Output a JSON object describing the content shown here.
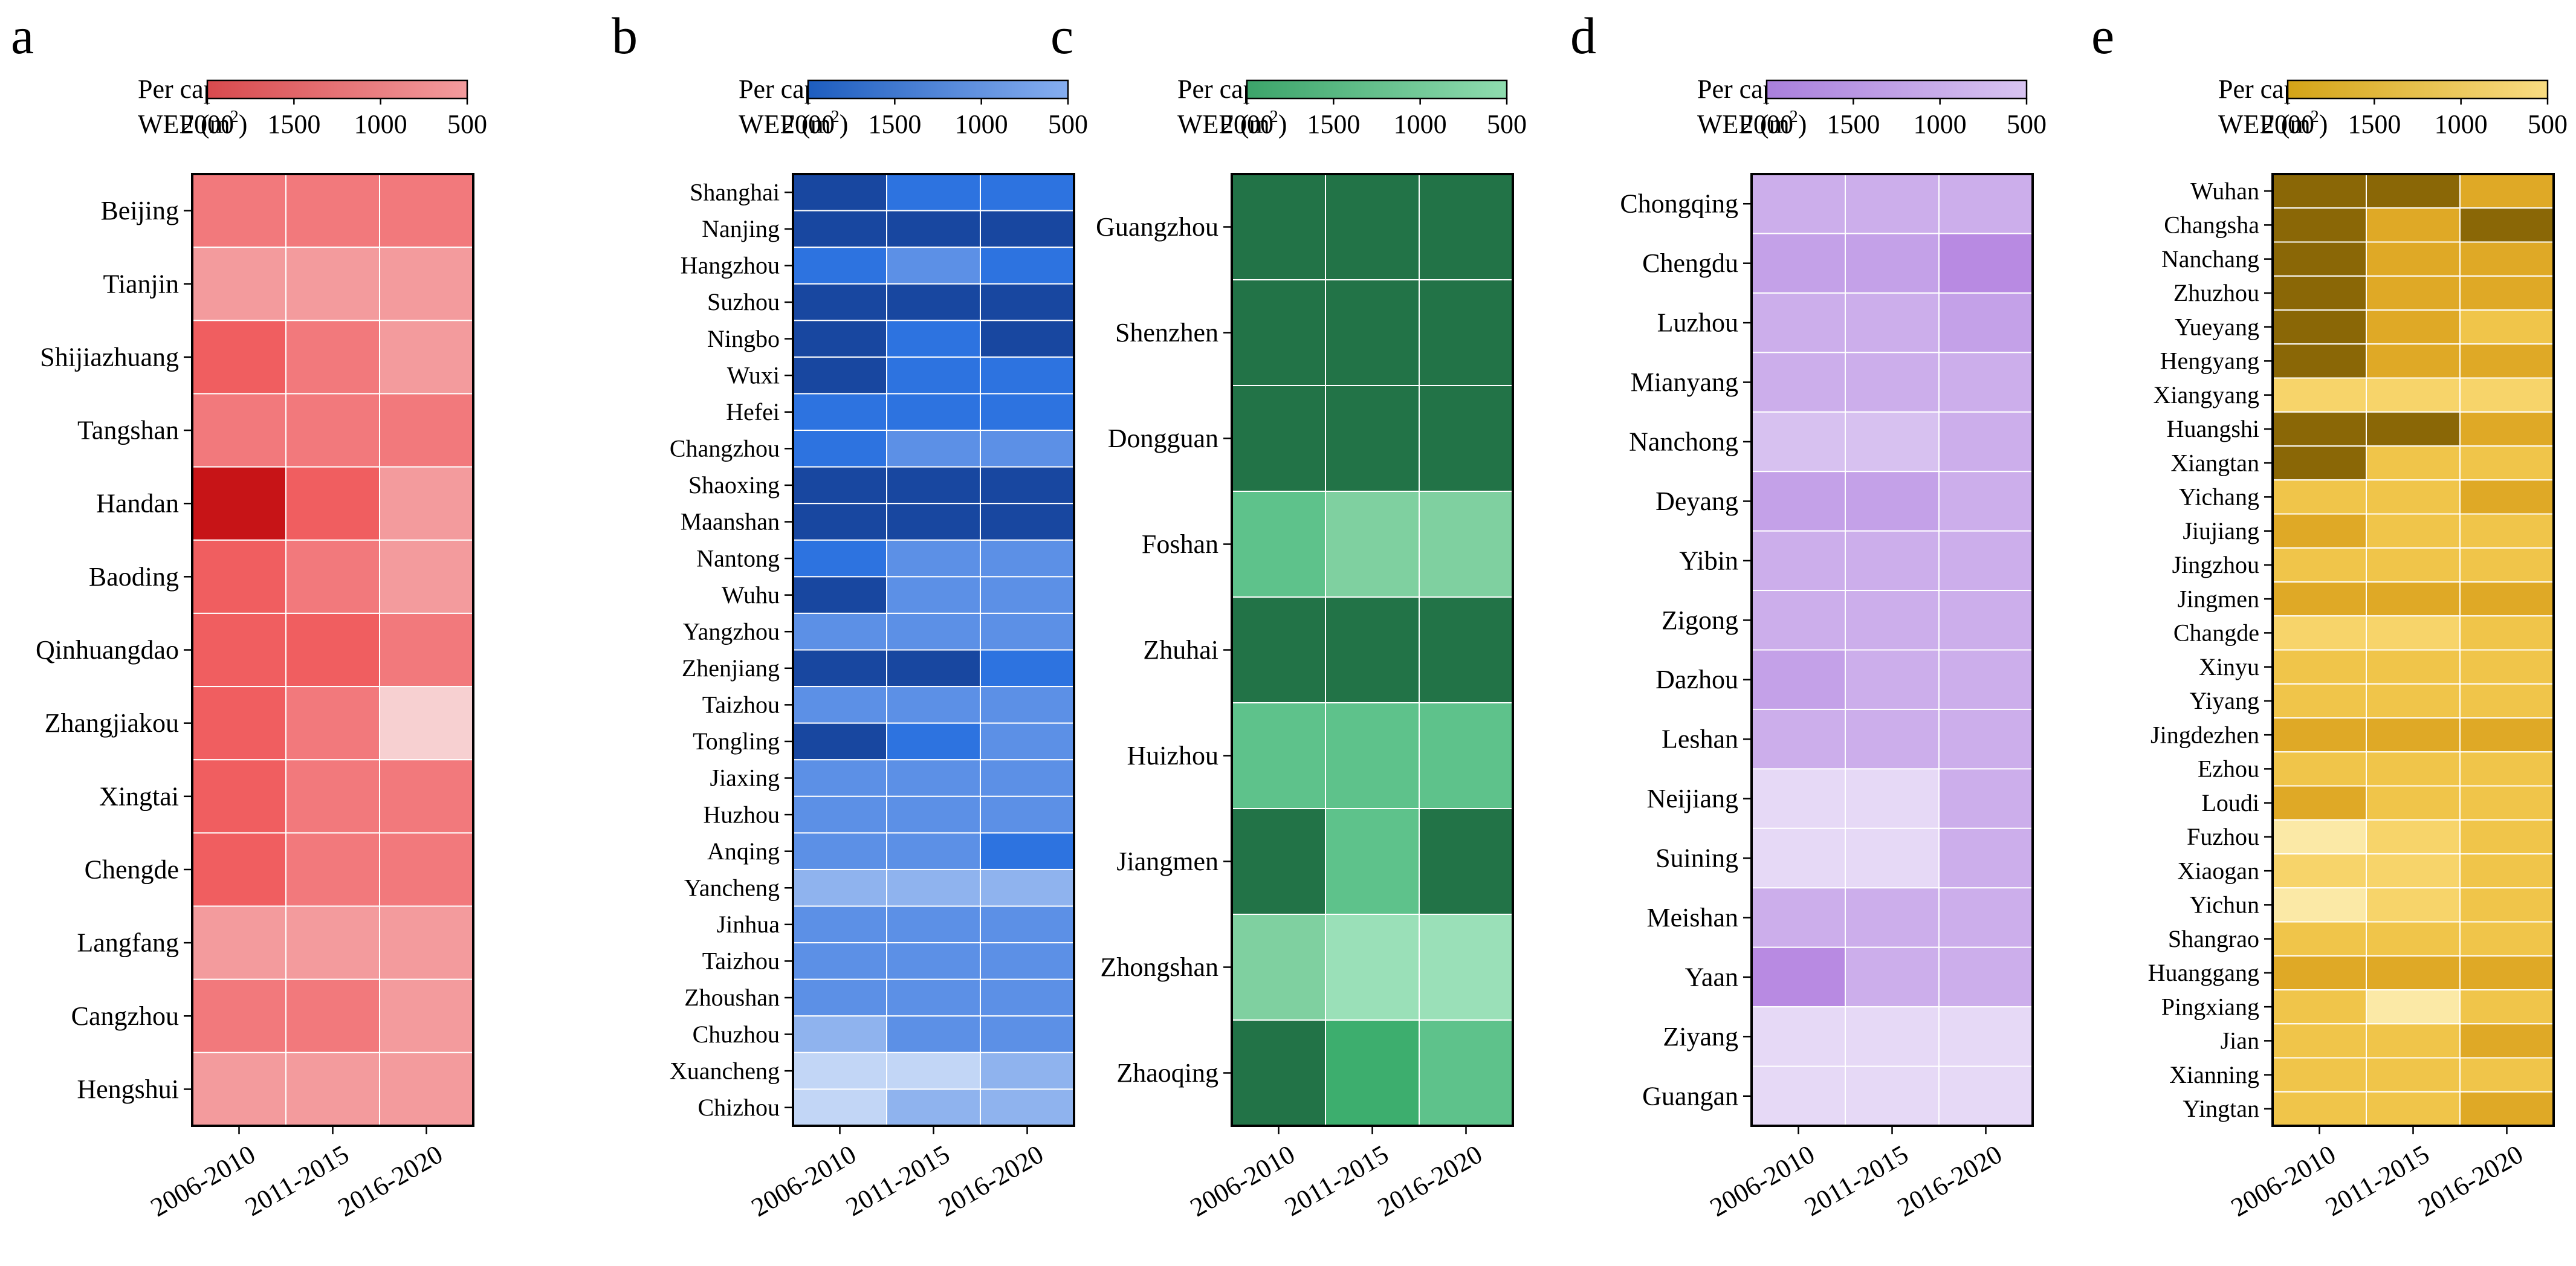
{
  "figure": {
    "legend_title_line1": "Per capita",
    "legend_title_line2": "WEF (m",
    "legend_title_sup": "2",
    "legend_title_close": ")"
  },
  "chart_data": [
    {
      "type": "heatmap",
      "panel_label": "a",
      "colorbar_ticks": [
        "2000",
        "1500",
        "1000",
        "500"
      ],
      "colorbar_range": [
        2000,
        500
      ],
      "colorbar_colors": [
        "#d84a4e",
        "#f39b9d"
      ],
      "palette": [
        "#f7d0d1",
        "#f39b9d",
        "#f2797c",
        "#f05e60",
        "#c71417"
      ],
      "periods": [
        "2006-2010",
        "2011-2015",
        "2016-2020"
      ],
      "cities": [
        "Beijing",
        "Tianjin",
        "Shijiazhuang",
        "Tangshan",
        "Handan",
        "Baoding",
        "Qinhuangdao",
        "Zhangjiakou",
        "Xingtai",
        "Chengde",
        "Langfang",
        "Cangzhou",
        "Hengshui"
      ],
      "levels": [
        [
          2,
          2,
          2
        ],
        [
          1,
          1,
          1
        ],
        [
          3,
          2,
          1
        ],
        [
          2,
          2,
          2
        ],
        [
          4,
          3,
          1
        ],
        [
          3,
          2,
          1
        ],
        [
          3,
          3,
          2
        ],
        [
          3,
          2,
          0
        ],
        [
          3,
          2,
          2
        ],
        [
          3,
          2,
          2
        ],
        [
          1,
          1,
          1
        ],
        [
          2,
          2,
          1
        ],
        [
          1,
          1,
          1
        ]
      ]
    },
    {
      "type": "heatmap",
      "panel_label": "b",
      "colorbar_ticks": [
        "2000",
        "1500",
        "1000",
        "500"
      ],
      "colorbar_range": [
        2000,
        500
      ],
      "colorbar_colors": [
        "#1d5dbf",
        "#86aef0"
      ],
      "palette": [
        "#c2d6f6",
        "#8fb3ee",
        "#5c90e6",
        "#2d73e0",
        "#1847a0"
      ],
      "periods": [
        "2006-2010",
        "2011-2015",
        "2016-2020"
      ],
      "cities": [
        "Shanghai",
        "Nanjing",
        "Hangzhou",
        "Suzhou",
        "Ningbo",
        "Wuxi",
        "Hefei",
        "Changzhou",
        "Shaoxing",
        "Maanshan",
        "Nantong",
        "Wuhu",
        "Yangzhou",
        "Zhenjiang",
        "Taizhou",
        "Tongling",
        "Jiaxing",
        "Huzhou",
        "Anqing",
        "Yancheng",
        "Jinhua",
        "Taizhou",
        "Zhoushan",
        "Chuzhou",
        "Xuancheng",
        "Chizhou"
      ],
      "levels": [
        [
          4,
          3,
          3
        ],
        [
          4,
          4,
          4
        ],
        [
          3,
          2,
          3
        ],
        [
          4,
          4,
          4
        ],
        [
          4,
          3,
          4
        ],
        [
          4,
          3,
          3
        ],
        [
          3,
          3,
          3
        ],
        [
          3,
          2,
          2
        ],
        [
          4,
          4,
          4
        ],
        [
          4,
          4,
          4
        ],
        [
          3,
          2,
          2
        ],
        [
          4,
          2,
          2
        ],
        [
          2,
          2,
          2
        ],
        [
          4,
          4,
          3
        ],
        [
          2,
          2,
          2
        ],
        [
          4,
          3,
          2
        ],
        [
          2,
          2,
          2
        ],
        [
          2,
          2,
          2
        ],
        [
          2,
          2,
          3
        ],
        [
          1,
          1,
          1
        ],
        [
          2,
          2,
          2
        ],
        [
          2,
          2,
          2
        ],
        [
          2,
          2,
          2
        ],
        [
          1,
          2,
          2
        ],
        [
          0,
          0,
          1
        ],
        [
          0,
          1,
          1
        ]
      ]
    },
    {
      "type": "heatmap",
      "panel_label": "c",
      "colorbar_ticks": [
        "2000",
        "1500",
        "1000",
        "500"
      ],
      "colorbar_range": [
        2000,
        500
      ],
      "colorbar_colors": [
        "#3ca46a",
        "#8fdcaf"
      ],
      "palette": [
        "#9ae0b8",
        "#7fd0a0",
        "#5ec28b",
        "#3dae6e",
        "#227347"
      ],
      "periods": [
        "2006-2010",
        "2011-2015",
        "2016-2020"
      ],
      "cities": [
        "Guangzhou",
        "Shenzhen",
        "Dongguan",
        "Foshan",
        "Zhuhai",
        "Huizhou",
        "Jiangmen",
        "Zhongshan",
        "Zhaoqing"
      ],
      "levels": [
        [
          4,
          4,
          4
        ],
        [
          4,
          4,
          4
        ],
        [
          4,
          4,
          4
        ],
        [
          2,
          1,
          1
        ],
        [
          4,
          4,
          4
        ],
        [
          2,
          2,
          2
        ],
        [
          4,
          2,
          4
        ],
        [
          1,
          0,
          0
        ],
        [
          4,
          3,
          2
        ]
      ]
    },
    {
      "type": "heatmap",
      "panel_label": "d",
      "colorbar_ticks": [
        "2000",
        "1500",
        "1000",
        "500"
      ],
      "colorbar_range": [
        2000,
        500
      ],
      "colorbar_colors": [
        "#a97fdc",
        "#d8c4f1"
      ],
      "palette": [
        "#e6d9f6",
        "#d7c1f0",
        "#ccaeeb",
        "#c4a1e8",
        "#b88ae2"
      ],
      "periods": [
        "2006-2010",
        "2011-2015",
        "2016-2020"
      ],
      "cities": [
        "Chongqing",
        "Chengdu",
        "Luzhou",
        "Mianyang",
        "Nanchong",
        "Deyang",
        "Yibin",
        "Zigong",
        "Dazhou",
        "Leshan",
        "Neijiang",
        "Suining",
        "Meishan",
        "Yaan",
        "Ziyang",
        "Guangan"
      ],
      "levels": [
        [
          2,
          2,
          2
        ],
        [
          3,
          3,
          4
        ],
        [
          2,
          2,
          3
        ],
        [
          2,
          2,
          2
        ],
        [
          1,
          1,
          2
        ],
        [
          3,
          3,
          2
        ],
        [
          2,
          2,
          2
        ],
        [
          2,
          2,
          2
        ],
        [
          3,
          2,
          2
        ],
        [
          2,
          2,
          2
        ],
        [
          0,
          0,
          2
        ],
        [
          0,
          0,
          2
        ],
        [
          2,
          2,
          2
        ],
        [
          4,
          2,
          2
        ],
        [
          0,
          0,
          0
        ],
        [
          0,
          0,
          0
        ]
      ]
    },
    {
      "type": "heatmap",
      "panel_label": "e",
      "colorbar_ticks": [
        "2000",
        "1500",
        "1000",
        "500"
      ],
      "colorbar_range": [
        2000,
        500
      ],
      "colorbar_colors": [
        "#d4a417",
        "#f9dc82"
      ],
      "palette": [
        "#fbe9a6",
        "#f7d46a",
        "#f0c54a",
        "#dfa926",
        "#8a6706"
      ],
      "periods": [
        "2006-2010",
        "2011-2015",
        "2016-2020"
      ],
      "cities": [
        "Wuhan",
        "Changsha",
        "Nanchang",
        "Zhuzhou",
        "Yueyang",
        "Hengyang",
        "Xiangyang",
        "Huangshi",
        "Xiangtan",
        "Yichang",
        "Jiujiang",
        "Jingzhou",
        "Jingmen",
        "Changde",
        "Xinyu",
        "Yiyang",
        "Jingdezhen",
        "Ezhou",
        "Loudi",
        "Fuzhou",
        "Xiaogan",
        "Yichun",
        "Shangrao",
        "Huanggang",
        "Pingxiang",
        "Jian",
        "Xianning",
        "Yingtan"
      ],
      "levels": [
        [
          4,
          4,
          3
        ],
        [
          4,
          3,
          4
        ],
        [
          4,
          3,
          3
        ],
        [
          4,
          3,
          3
        ],
        [
          4,
          3,
          2
        ],
        [
          4,
          3,
          3
        ],
        [
          1,
          1,
          1
        ],
        [
          4,
          4,
          3
        ],
        [
          4,
          2,
          2
        ],
        [
          2,
          2,
          3
        ],
        [
          3,
          2,
          2
        ],
        [
          2,
          2,
          2
        ],
        [
          3,
          3,
          3
        ],
        [
          1,
          1,
          2
        ],
        [
          2,
          2,
          2
        ],
        [
          2,
          2,
          2
        ],
        [
          3,
          3,
          3
        ],
        [
          2,
          2,
          2
        ],
        [
          3,
          2,
          2
        ],
        [
          0,
          1,
          2
        ],
        [
          1,
          1,
          2
        ],
        [
          0,
          1,
          2
        ],
        [
          2,
          2,
          2
        ],
        [
          3,
          3,
          3
        ],
        [
          2,
          0,
          2
        ],
        [
          2,
          2,
          3
        ],
        [
          2,
          2,
          2
        ],
        [
          2,
          2,
          3
        ]
      ]
    }
  ]
}
